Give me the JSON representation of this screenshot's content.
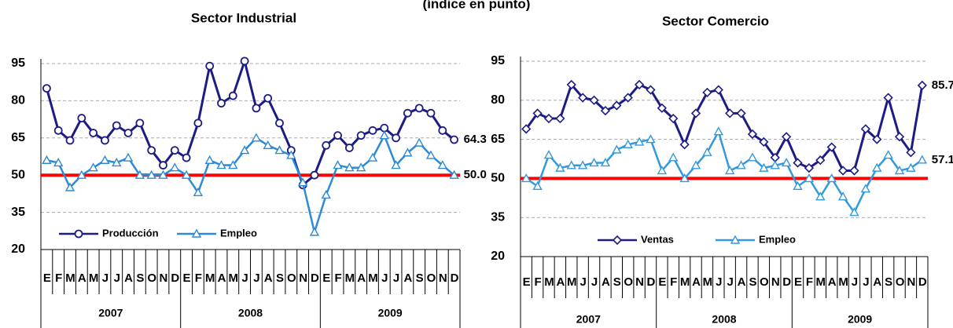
{
  "title": "(índice en punto)",
  "chart_data": [
    {
      "type": "line",
      "title": "Sector Industrial",
      "categories": [
        "E",
        "F",
        "M",
        "A",
        "M",
        "J",
        "J",
        "A",
        "S",
        "O",
        "N",
        "D",
        "E",
        "F",
        "M",
        "A",
        "M",
        "J",
        "J",
        "A",
        "S",
        "O",
        "N",
        "D",
        "E",
        "F",
        "M",
        "A",
        "M",
        "J",
        "J",
        "A",
        "S",
        "O",
        "N",
        "D"
      ],
      "groups": [
        "2007",
        "2008",
        "2009"
      ],
      "ylim": [
        20,
        95
      ],
      "yticks": [
        20,
        35,
        50,
        65,
        80,
        95
      ],
      "grid": true,
      "legend": "lower left",
      "reference_line": {
        "value": 50,
        "color": "#ff0000"
      },
      "series": [
        {
          "name": "Producción",
          "color": "#1c1c84",
          "marker": "circle",
          "values": [
            85,
            68,
            64,
            73,
            67,
            64,
            70,
            67,
            71,
            60,
            54,
            60,
            57,
            71,
            94,
            79,
            82,
            96,
            77,
            81,
            71,
            60,
            46,
            50,
            62,
            66,
            61,
            66,
            68,
            69,
            65,
            75,
            77,
            75,
            68,
            64.3
          ],
          "value_labels": [
            null,
            null,
            null,
            null,
            null,
            null,
            null,
            null,
            null,
            null,
            null,
            null,
            null,
            null,
            null,
            null,
            null,
            null,
            null,
            null,
            null,
            null,
            null,
            null,
            null,
            null,
            null,
            null,
            null,
            null,
            null,
            null,
            null,
            null,
            null,
            "64.3"
          ]
        },
        {
          "name": "Empleo",
          "color": "#2e8ad4",
          "marker": "triangle",
          "values": [
            56,
            55,
            45,
            50,
            53,
            56,
            55,
            57,
            50,
            50,
            50,
            53,
            50,
            43,
            56,
            54,
            54,
            60,
            65,
            62,
            60,
            58,
            47,
            27,
            42,
            54,
            53,
            53,
            57,
            66,
            54,
            59,
            63,
            58,
            54,
            50
          ],
          "value_labels": [
            null,
            null,
            null,
            null,
            null,
            null,
            null,
            null,
            null,
            null,
            null,
            null,
            null,
            null,
            null,
            null,
            null,
            null,
            null,
            null,
            null,
            null,
            null,
            null,
            null,
            null,
            null,
            null,
            null,
            null,
            null,
            null,
            null,
            null,
            null,
            "50.0"
          ]
        }
      ]
    },
    {
      "type": "line",
      "title": "Sector Comercio",
      "categories": [
        "E",
        "F",
        "M",
        "A",
        "M",
        "J",
        "J",
        "A",
        "S",
        "O",
        "N",
        "D",
        "E",
        "F",
        "M",
        "A",
        "M",
        "J",
        "J",
        "A",
        "S",
        "O",
        "N",
        "D",
        "E",
        "F",
        "M",
        "A",
        "M",
        "J",
        "J",
        "A",
        "S",
        "O",
        "N",
        "D"
      ],
      "groups": [
        "2007",
        "2008",
        "2009"
      ],
      "ylim": [
        20,
        95
      ],
      "yticks": [
        20,
        35,
        50,
        65,
        80,
        95
      ],
      "grid": true,
      "legend": "lower center",
      "reference_line": {
        "value": 50,
        "color": "#ff0000"
      },
      "series": [
        {
          "name": "Ventas",
          "color": "#1c1c84",
          "marker": "diamond",
          "values": [
            69,
            75,
            73,
            73,
            86,
            81,
            80,
            76,
            78,
            81,
            86,
            84,
            77,
            73,
            63,
            75,
            83,
            84,
            75,
            75,
            67,
            64,
            58,
            66,
            56,
            54,
            57,
            62,
            53,
            53,
            69,
            65,
            81,
            66,
            60,
            85.7
          ],
          "value_labels": [
            null,
            null,
            null,
            null,
            null,
            null,
            null,
            null,
            null,
            null,
            null,
            null,
            null,
            null,
            null,
            null,
            null,
            null,
            null,
            null,
            null,
            null,
            null,
            null,
            null,
            null,
            null,
            null,
            null,
            null,
            null,
            null,
            null,
            null,
            null,
            "85.7"
          ]
        },
        {
          "name": "Empleo",
          "color": "#3399dd",
          "marker": "triangle",
          "values": [
            50,
            47,
            59,
            54,
            55,
            55,
            56,
            56,
            61,
            63,
            64,
            65,
            53,
            58,
            50,
            55,
            60,
            68,
            53,
            55,
            58,
            54,
            55,
            56,
            47,
            50,
            43,
            50,
            43,
            37,
            46,
            54,
            59,
            53,
            54,
            57.1
          ],
          "value_labels": [
            null,
            null,
            null,
            null,
            null,
            null,
            null,
            null,
            null,
            null,
            null,
            null,
            null,
            null,
            null,
            null,
            null,
            null,
            null,
            null,
            null,
            null,
            null,
            null,
            null,
            null,
            null,
            null,
            null,
            null,
            null,
            null,
            null,
            null,
            null,
            "57.1"
          ]
        }
      ]
    }
  ]
}
